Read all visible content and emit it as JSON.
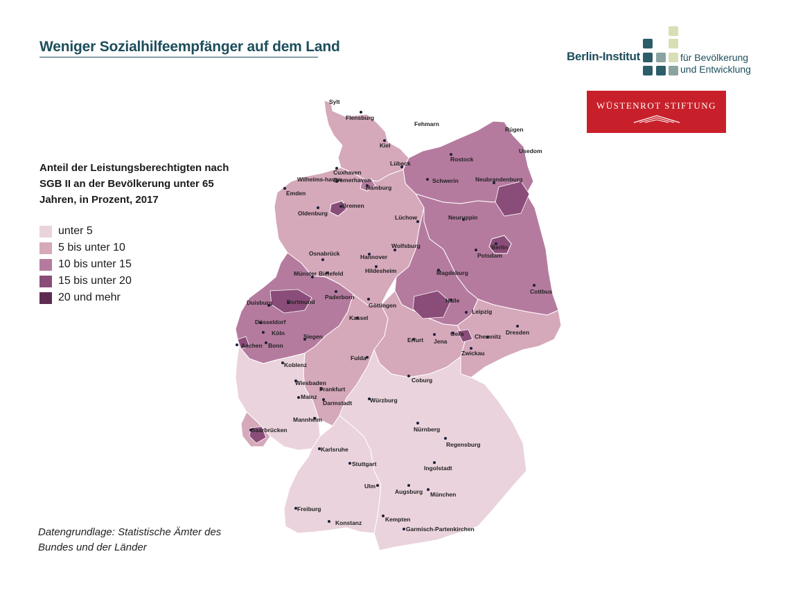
{
  "title": "Weniger Sozialhilfeempfänger auf dem Land",
  "logos": {
    "berlin_institut": {
      "name": "Berlin-Institut",
      "line1": "für Bevölkerung",
      "line2": "und Entwicklung"
    },
    "wuestenrot": {
      "name": "WÜSTENROT STIFTUNG"
    }
  },
  "legend": {
    "title": "Anteil der Leistungsberechtigten nach SGB II an der Bevölkerung unter 65 Jahren, in Prozent, 2017",
    "items": [
      {
        "label": "unter 5",
        "color": "#ead3dc"
      },
      {
        "label": "5 bis unter 10",
        "color": "#d5a8ba"
      },
      {
        "label": "10 bis unter 15",
        "color": "#b57b9f"
      },
      {
        "label": "15 bis unter 20",
        "color": "#8a4d79"
      },
      {
        "label": "20 und mehr",
        "color": "#5e2b52"
      }
    ]
  },
  "source": "Datengrundlage: Statistische Ämter des Bundes und der Länder",
  "cities": [
    "Sylt",
    "Flensburg",
    "Fehmarn",
    "Rügen",
    "Kiel",
    "Usedom",
    "Rostock",
    "Cuxhaven",
    "Lübeck",
    "Wilhelms-haven",
    "Bremerhaven",
    "Schwerin",
    "Neubrandenburg",
    "Hamburg",
    "Emden",
    "Bremen",
    "Oldenburg",
    "Lüchow",
    "Neuruppin",
    "Berlin",
    "Potsdam",
    "Osnabrück",
    "Hannover",
    "Wolfsburg",
    "Münster",
    "Bielefeld",
    "Hildesheim",
    "Magdeburg",
    "Cottbus",
    "Duisburg",
    "Dortmund",
    "Paderborn",
    "Halle",
    "Göttingen",
    "Leipzig",
    "Düsseldorf",
    "Kassel",
    "Köln",
    "Erfurt",
    "Jena",
    "Gera",
    "Chemnitz",
    "Dresden",
    "Aachen",
    "Bonn",
    "Siegen",
    "Zwickau",
    "Koblenz",
    "Fulda",
    "Coburg",
    "Wiesbaden",
    "Frankfurt",
    "Mainz",
    "Darmstadt",
    "Würzburg",
    "Mannheim",
    "Saarbrücken",
    "Nürnberg",
    "Regensburg",
    "Karlsruhe",
    "Stuttgart",
    "Ingolstadt",
    "Ulm",
    "Augsburg",
    "München",
    "Freiburg",
    "Konstanz",
    "Kempten",
    "Garmisch-Partenkirchen"
  ],
  "regions": [
    {
      "name": "schleswig-holstein",
      "class": 1
    },
    {
      "name": "mecklenburg-vorpommern",
      "class": 2
    },
    {
      "name": "hamburg",
      "class": 3
    },
    {
      "name": "niedersachsen",
      "class": 1
    },
    {
      "name": "bremen",
      "class": 4
    },
    {
      "name": "brandenburg",
      "class": 2
    },
    {
      "name": "berlin",
      "class": 3
    },
    {
      "name": "sachsen-anhalt",
      "class": 2
    },
    {
      "name": "nordrhein-westfalen",
      "class": 2
    },
    {
      "name": "hessen",
      "class": 1
    },
    {
      "name": "thueringen",
      "class": 1
    },
    {
      "name": "sachsen",
      "class": 1
    },
    {
      "name": "rheinland-pfalz",
      "class": 0
    },
    {
      "name": "saarland",
      "class": 1
    },
    {
      "name": "bayern",
      "class": 0
    },
    {
      "name": "baden-wuerttemberg",
      "class": 0
    }
  ]
}
